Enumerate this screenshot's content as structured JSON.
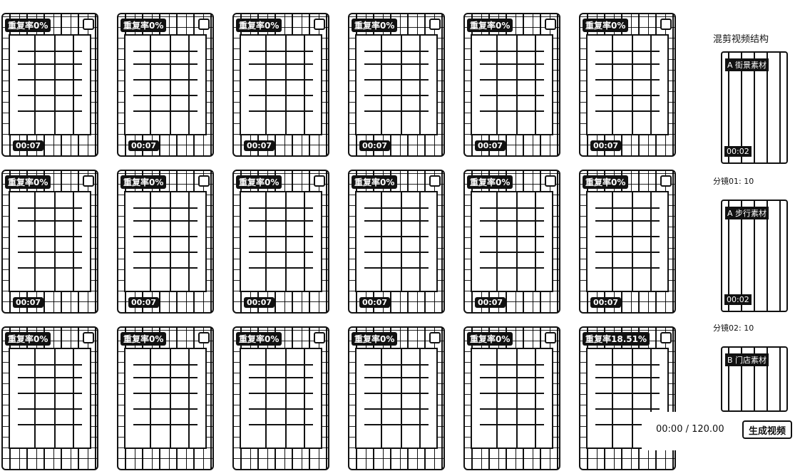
{
  "tiles": [
    [
      {
        "dup": "重复率0%",
        "dur": "00:07"
      },
      {
        "dup": "重复率0%",
        "dur": "00:07"
      },
      {
        "dup": "重复率0%",
        "dur": "00:07"
      },
      {
        "dup": "重复率0%",
        "dur": "00:07"
      },
      {
        "dup": "重复率0%",
        "dur": "00:07"
      },
      {
        "dup": "重复率0%",
        "dur": "00:07"
      }
    ],
    [
      {
        "dup": "重复率0%",
        "dur": "00:07"
      },
      {
        "dup": "重复率0%",
        "dur": "00:07"
      },
      {
        "dup": "重复率0%",
        "dur": "00:07"
      },
      {
        "dup": "重复率0%",
        "dur": "00:07"
      },
      {
        "dup": "重复率0%",
        "dur": "00:07"
      },
      {
        "dup": "重复率0%",
        "dur": "00:07"
      }
    ],
    [
      {
        "dup": "重复率0%",
        "dur": ""
      },
      {
        "dup": "重复率0%",
        "dur": ""
      },
      {
        "dup": "重复率0%",
        "dur": ""
      },
      {
        "dup": "重复率0%",
        "dur": ""
      },
      {
        "dup": "重复率0%",
        "dur": ""
      },
      {
        "dup": "重复率18.51%",
        "dur": ""
      }
    ]
  ],
  "sidebar": {
    "title": "混剪视频结构",
    "segments": [
      {
        "label": "",
        "tag": "A 街景素材",
        "dur": "00:02"
      },
      {
        "label": "分镜01: 10",
        "tag": "A 步行素材",
        "dur": "00:02"
      },
      {
        "label": "分镜02: 10",
        "tag": "B 门店素材",
        "dur": ""
      }
    ]
  },
  "player": {
    "timecode": "00:00 / 120.00",
    "generate_label": "生成视频"
  },
  "colors": {
    "ink": "#111111",
    "background": "#ffffff"
  }
}
